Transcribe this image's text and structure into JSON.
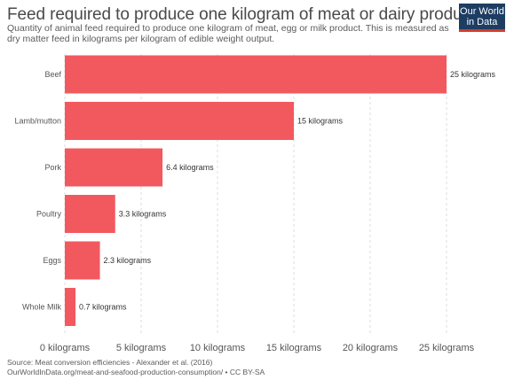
{
  "title": "Feed required to produce one kilogram of meat or dairy product",
  "subtitle": "Quantity of animal feed required to produce one kilogram of meat, egg or milk product. This is measured as dry matter feed in kilograms per kilogram of edible weight output.",
  "logo": {
    "line1": "Our World",
    "line2": "in Data"
  },
  "footer": {
    "source": "Source: Meat conversion efficiencies - Alexander et al. (2016)",
    "url": "OurWorldInData.org/meat-and-seafood-production-consumption/ • CC BY-SA"
  },
  "chart_data": {
    "type": "bar",
    "orientation": "horizontal",
    "categories": [
      "Beef",
      "Lamb/mutton",
      "Pork",
      "Poultry",
      "Eggs",
      "Whole Milk"
    ],
    "values": [
      25,
      15,
      6.4,
      3.3,
      2.3,
      0.7
    ],
    "value_labels": [
      "25 kilograms",
      "15 kilograms",
      "6.4 kilograms",
      "3.3 kilograms",
      "2.3 kilograms",
      "0.7 kilograms"
    ],
    "xlim": [
      0,
      25
    ],
    "xticks": [
      0,
      5,
      10,
      15,
      20,
      25
    ],
    "xtick_labels": [
      "0 kilograms",
      "5 kilograms",
      "10 kilograms",
      "15 kilograms",
      "20 kilograms",
      "25 kilograms"
    ],
    "bar_color": "#f2595f",
    "grid": "vertical dashed"
  }
}
